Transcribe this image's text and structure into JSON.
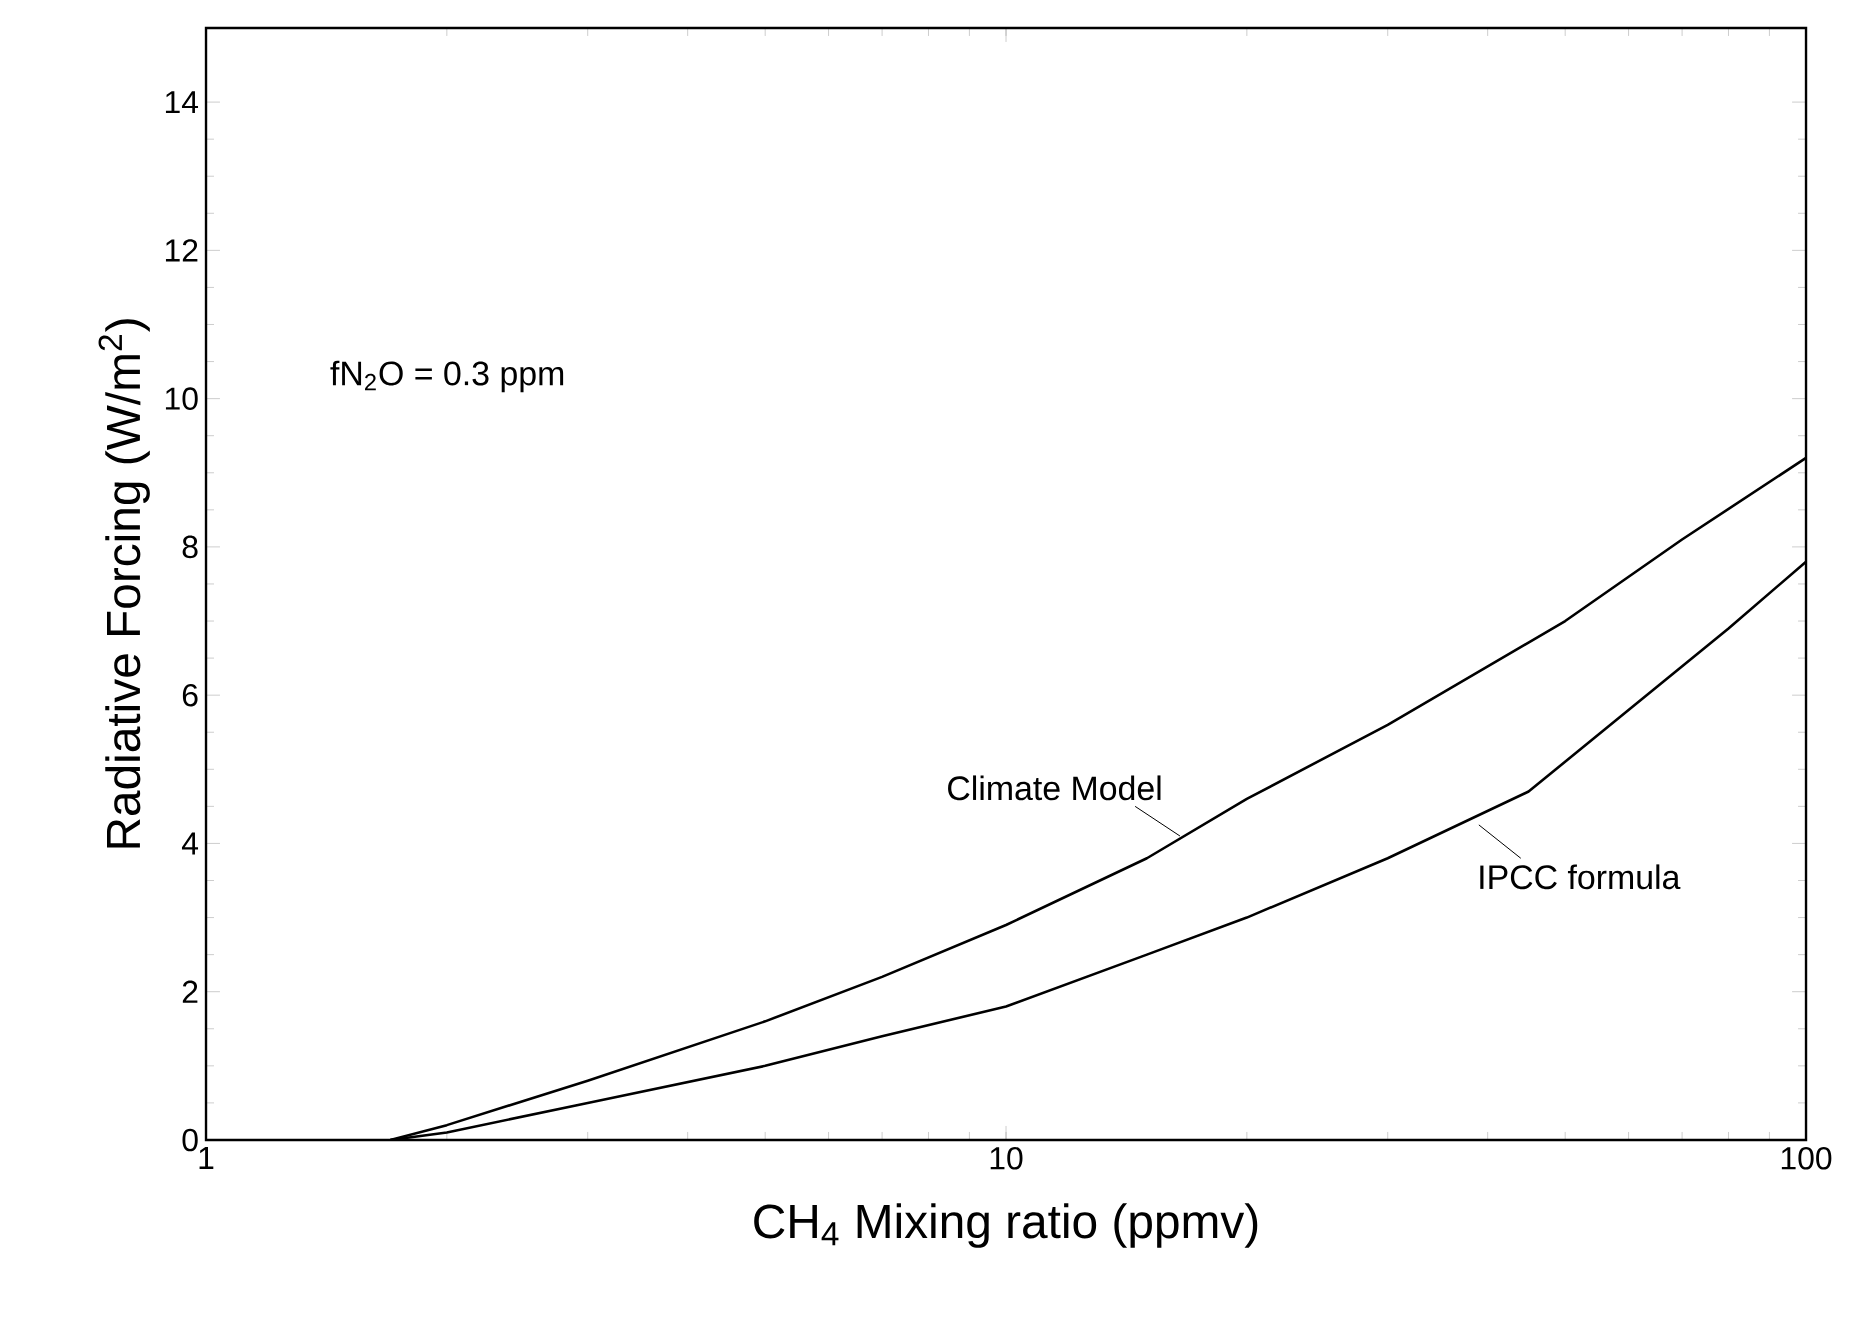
{
  "chart_data": {
    "type": "line",
    "xlabel": "CH$_{4}$  Mixing ratio (ppmv)",
    "ylabel": "Radiative Forcing (W/m$^{2}$)",
    "log": "x",
    "xlim": [
      1,
      100
    ],
    "ylim": [
      0,
      15
    ],
    "xticks": [
      1,
      10,
      100
    ],
    "yticks": [
      0,
      2,
      4,
      6,
      8,
      10,
      12,
      14
    ],
    "grid": false,
    "marker": "none",
    "line_style": "solid",
    "annotations": [
      "fN$_{2}$O = 0.3 ppm"
    ],
    "series": [
      {
        "name": "Climate Model",
        "color": "#000000",
        "x": [
          1.7,
          2,
          3,
          5,
          7,
          10,
          15,
          20,
          30,
          50,
          70,
          100
        ],
        "values": [
          0,
          0.2,
          0.8,
          1.6,
          2.2,
          2.9,
          3.8,
          4.6,
          5.6,
          7.0,
          8.1,
          9.2
        ]
      },
      {
        "name": "IPCC formula",
        "color": "#000000",
        "x": [
          1.7,
          2,
          3,
          5,
          7,
          10,
          15,
          20,
          30,
          45,
          60,
          80,
          100
        ],
        "values": [
          0,
          0.1,
          0.5,
          1.0,
          1.4,
          1.8,
          2.5,
          3.0,
          3.8,
          4.7,
          5.8,
          6.9,
          7.8
        ]
      }
    ]
  }
}
